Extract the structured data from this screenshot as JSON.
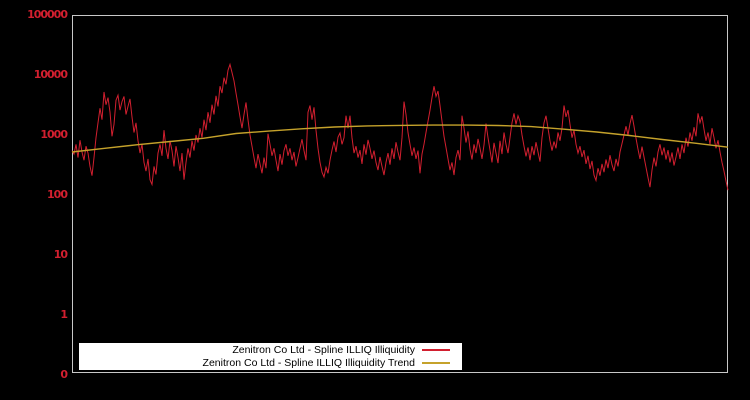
{
  "window": {
    "background": "#000000"
  },
  "legend": {
    "background": "#ffffff",
    "text_color": "#000000"
  },
  "chart_data": {
    "type": "line",
    "title": "",
    "xlabel": "",
    "ylabel": "",
    "yscale": "log",
    "grid": false,
    "legend_position": "bottom-center",
    "plot_background": "#000000",
    "border_color": "#c8c8c8",
    "tick_label_color": "#d21f2f",
    "ylim_log10": [
      -1,
      5
    ],
    "y_ticks": [
      {
        "label": "100000",
        "v": 100000
      },
      {
        "label": "10000",
        "v": 10000
      },
      {
        "label": "1000",
        "v": 1000
      },
      {
        "label": "100",
        "v": 100
      },
      {
        "label": "10",
        "v": 10
      },
      {
        "label": "1",
        "v": 1
      },
      {
        "label": "0",
        "v": 0.1
      }
    ],
    "series": [
      {
        "name": "Zenitron Co Ltd - Spline ILLIQ Illiquidity",
        "color": "#d21f2f",
        "width": 1,
        "values": [
          550,
          480,
          700,
          420,
          820,
          520,
          380,
          650,
          500,
          300,
          210,
          420,
          900,
          1600,
          2800,
          1800,
          5200,
          3200,
          4200,
          2400,
          950,
          1500,
          3800,
          4600,
          2600,
          3600,
          4400,
          2200,
          3000,
          4000,
          2000,
          1100,
          1600,
          800,
          500,
          700,
          350,
          250,
          400,
          180,
          150,
          300,
          220,
          500,
          700,
          450,
          1200,
          600,
          400,
          800,
          550,
          300,
          650,
          420,
          250,
          500,
          180,
          350,
          600,
          420,
          800,
          550,
          1000,
          750,
          1300,
          900,
          1800,
          1200,
          2400,
          1600,
          3200,
          2200,
          4500,
          3000,
          6500,
          5000,
          9000,
          7000,
          12000,
          15000,
          11000,
          8000,
          5000,
          3200,
          2000,
          1300,
          2200,
          3500,
          1800,
          1000,
          650,
          420,
          280,
          480,
          330,
          230,
          420,
          280,
          1050,
          700,
          450,
          600,
          380,
          250,
          480,
          320,
          550,
          700,
          450,
          600,
          380,
          520,
          300,
          420,
          600,
          850,
          550,
          380,
          2400,
          3100,
          1800,
          2900,
          1200,
          600,
          350,
          240,
          200,
          290,
          230,
          380,
          560,
          780,
          520,
          920,
          1080,
          700,
          900,
          2100,
          1300,
          2100,
          900,
          500,
          650,
          420,
          560,
          330,
          700,
          470,
          830,
          600,
          400,
          550,
          350,
          260,
          430,
          300,
          215,
          350,
          500,
          320,
          600,
          400,
          760,
          520,
          380,
          900,
          3600,
          2200,
          1100,
          700,
          450,
          620,
          400,
          550,
          230,
          480,
          700,
          1100,
          1700,
          2600,
          4200,
          6500,
          4400,
          5400,
          3100,
          1700,
          950,
          620,
          400,
          260,
          350,
          215,
          420,
          560,
          380,
          2100,
          1300,
          750,
          1150,
          580,
          390,
          700,
          500,
          860,
          600,
          400,
          680,
          1550,
          900,
          560,
          350,
          740,
          500,
          340,
          800,
          480,
          1100,
          700,
          500,
          900,
          1600,
          2300,
          1500,
          2100,
          1700,
          1000,
          650,
          440,
          620,
          380,
          650,
          460,
          760,
          520,
          360,
          900,
          1600,
          2100,
          1300,
          800,
          550,
          780,
          600,
          1100,
          800,
          1300,
          3100,
          2000,
          2600,
          1500,
          900,
          1200,
          700,
          500,
          650,
          430,
          560,
          330,
          450,
          270,
          370,
          215,
          175,
          280,
          210,
          330,
          240,
          390,
          280,
          460,
          320,
          250,
          400,
          300,
          520,
          720,
          1000,
          1400,
          1000,
          1550,
          2150,
          1400,
          880,
          580,
          400,
          640,
          430,
          290,
          195,
          135,
          260,
          420,
          300,
          520,
          700,
          460,
          620,
          390,
          560,
          350,
          510,
          310,
          430,
          620,
          400,
          700,
          500,
          900,
          640,
          1100,
          800,
          1350,
          950,
          2300,
          1600,
          2050,
          1250,
          800,
          1100,
          700,
          1300,
          900,
          600,
          820,
          520,
          350,
          250,
          170,
          120
        ]
      },
      {
        "name": "Zenitron Co Ltd - Spline ILLIQ Illiquidity Trend",
        "color": "#c5a22b",
        "width": 1.4,
        "values": [
          520,
          600,
          690,
          780,
          880,
          1060,
          1160,
          1270,
          1360,
          1420,
          1445,
          1460,
          1460,
          1440,
          1380,
          1250,
          1120,
          980,
          840,
          730,
          625
        ]
      }
    ]
  }
}
